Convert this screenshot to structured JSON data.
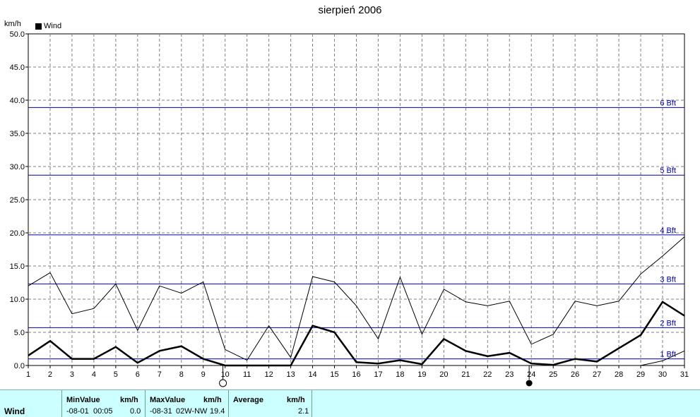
{
  "title": "sierpień 2006",
  "unit_label": "km/h",
  "legend": {
    "label": "Wind",
    "color": "#000000"
  },
  "chart_data": {
    "type": "line",
    "title": "sierpień 2006",
    "ylabel": "km/h",
    "ylim": [
      0,
      50
    ],
    "yticks": [
      "0.0",
      "5.0",
      "10.0",
      "15.0",
      "20.0",
      "25.0",
      "30.0",
      "35.0",
      "40.0",
      "45.0",
      "50.0"
    ],
    "x": [
      1,
      2,
      3,
      4,
      5,
      6,
      7,
      8,
      9,
      10,
      11,
      12,
      13,
      14,
      15,
      16,
      17,
      18,
      19,
      20,
      21,
      22,
      23,
      24,
      25,
      26,
      27,
      28,
      29,
      30,
      31
    ],
    "xticks": [
      "1",
      "2",
      "3",
      "4",
      "5",
      "6",
      "7",
      "8",
      "9",
      "10",
      "11",
      "12",
      "13",
      "14",
      "15",
      "16",
      "17",
      "18",
      "19",
      "20",
      "21",
      "22",
      "23",
      "24",
      "25",
      "26",
      "27",
      "28",
      "29",
      "30",
      "31"
    ],
    "grid": true,
    "series": [
      {
        "name": "Wind",
        "color": "#000000",
        "values": [
          1.5,
          3.7,
          1.0,
          1.0,
          2.8,
          0.4,
          2.2,
          2.9,
          1.0,
          0.0,
          0.0,
          0.0,
          0.0,
          6.0,
          5.0,
          0.5,
          0.3,
          0.8,
          0.2,
          4.0,
          2.2,
          1.4,
          1.9,
          0.3,
          0.1,
          1.0,
          0.6,
          2.6,
          4.6,
          9.6,
          7.5
        ]
      },
      {
        "color": "#000000",
        "values": [
          12.0,
          14.0,
          7.8,
          8.6,
          12.3,
          5.3,
          12.0,
          10.9,
          12.6,
          2.4,
          0.8,
          6.0,
          1.2,
          13.4,
          12.6,
          9.0,
          4.0,
          13.3,
          4.7,
          11.5,
          9.6,
          9.0,
          9.7,
          3.2,
          4.7,
          9.7,
          9.0,
          9.7,
          13.8,
          16.5,
          19.4
        ]
      },
      {
        "color": "#000000",
        "values": [
          null,
          null,
          null,
          null,
          null,
          null,
          null,
          null,
          null,
          null,
          null,
          null,
          null,
          null,
          null,
          null,
          null,
          null,
          null,
          null,
          null,
          null,
          null,
          null,
          null,
          null,
          null,
          null,
          0.0,
          0.7,
          2.2
        ]
      }
    ],
    "reference_lines": [
      {
        "label": "1 Bft",
        "value": 1.0
      },
      {
        "label": "2 Bft",
        "value": 5.7
      },
      {
        "label": "3 Bft",
        "value": 12.3
      },
      {
        "label": "4 Bft",
        "value": 19.7
      },
      {
        "label": "5 Bft",
        "value": 28.7
      },
      {
        "label": "6 Bft",
        "value": 38.9
      }
    ],
    "moon_markers": [
      {
        "day": 9.9,
        "phase": "full-moon"
      },
      {
        "day": 23.9,
        "phase": "new-moon"
      }
    ],
    "ref_line_color": "#0000aa"
  },
  "footer": {
    "row_label": "Wind",
    "min": {
      "header": "MinValue",
      "unit": "km/h",
      "date": "-08-01",
      "time": "00:05",
      "value": "0.0"
    },
    "max": {
      "header": "MaxValue",
      "unit": "km/h",
      "date": "-08-31",
      "dir": "02W-NW",
      "value": "19.4"
    },
    "avg": {
      "header": "Average",
      "unit": "km/h",
      "value": "2.1"
    }
  }
}
